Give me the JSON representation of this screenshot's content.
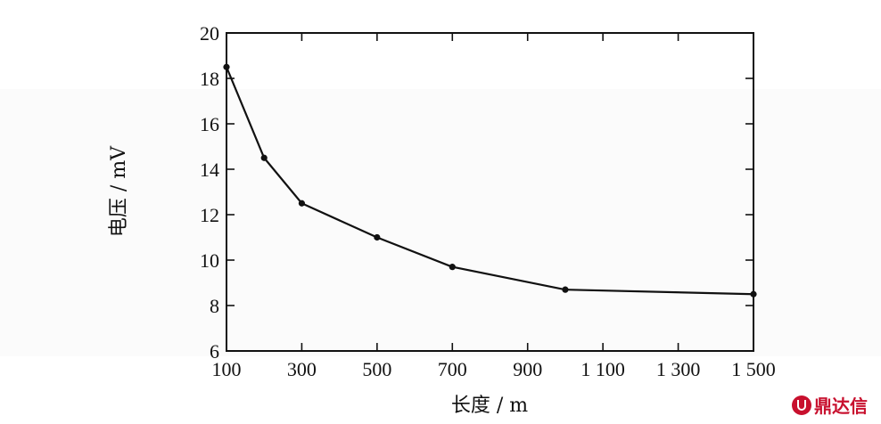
{
  "chart_data": {
    "type": "line",
    "title": "",
    "xlabel": "长度 / m",
    "ylabel": "电压 / mV",
    "xlim": [
      100,
      1500
    ],
    "ylim": [
      6,
      20
    ],
    "grid": false,
    "x_ticks": [
      100,
      300,
      500,
      700,
      900,
      1100,
      1300,
      1500
    ],
    "x_tick_labels": [
      "100",
      "300",
      "500",
      "700",
      "900",
      "1 100",
      "1 300",
      "1 500"
    ],
    "y_ticks": [
      6,
      8,
      10,
      12,
      14,
      16,
      18,
      20
    ],
    "y_tick_labels": [
      "6",
      "8",
      "10",
      "12",
      "14",
      "16",
      "18",
      "20"
    ],
    "series": [
      {
        "x": [
          100,
          200,
          300,
          500,
          700,
          1000,
          1500
        ],
        "y": [
          18.5,
          14.5,
          12.5,
          11.0,
          9.7,
          8.7,
          8.5
        ]
      }
    ],
    "line_color": "#111111"
  },
  "watermark": {
    "text": "鼎达信",
    "color": "#c8102e"
  }
}
